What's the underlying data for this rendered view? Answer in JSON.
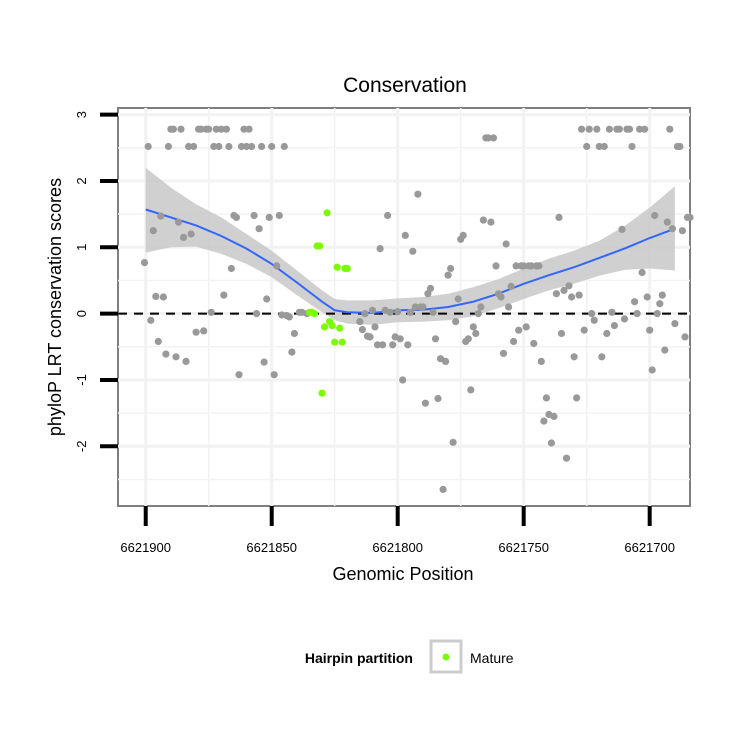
{
  "chart_data": {
    "type": "scatter",
    "title": "Conservation",
    "xlabel": "Genomic Position",
    "ylabel": "phyloP LRT conservation scores",
    "xlim": [
      6621911,
      6621684
    ],
    "x_reversed": true,
    "ylim": [
      -2.9,
      3.1
    ],
    "x_ticks": [
      6621900,
      6621850,
      6621800,
      6621750,
      6621700
    ],
    "y_ticks": [
      -2,
      -1,
      0,
      1,
      2,
      3
    ],
    "x_tick_labels": [
      "6621900",
      "6621850",
      "6621800",
      "6621750",
      "6621700"
    ],
    "y_tick_labels": [
      "-2",
      "-1",
      "0",
      "1",
      "2",
      "3"
    ],
    "grid": true,
    "reference_line": {
      "y": 0,
      "style": "dashed"
    },
    "legend": {
      "title": "Hairpin partition",
      "position": "bottom",
      "entries": [
        {
          "label": "Mature",
          "color": "#7cfc00"
        }
      ]
    },
    "colors": {
      "other": "#999999",
      "mature": "#7cfc00",
      "smooth": "#3366ff",
      "band": "#c8c8c8",
      "panel": "#ffffff",
      "grid": "#f2f2f2"
    },
    "series": [
      {
        "name": "",
        "color": "#999999",
        "points": [
          [
            6621900.5,
            0.77
          ],
          [
            6621899,
            2.52
          ],
          [
            6621898,
            -0.1
          ],
          [
            6621897,
            1.25
          ],
          [
            6621896,
            0.26
          ],
          [
            6621895,
            -0.42
          ],
          [
            6621894,
            1.47
          ],
          [
            6621893,
            0.25
          ],
          [
            6621892,
            -0.61
          ],
          [
            6621891,
            2.52
          ],
          [
            6621890,
            2.78
          ],
          [
            6621889,
            2.78
          ],
          [
            6621888,
            -0.65
          ],
          [
            6621887,
            1.38
          ],
          [
            6621886,
            2.78
          ],
          [
            6621885,
            1.15
          ],
          [
            6621884,
            -0.72
          ],
          [
            6621883,
            2.52
          ],
          [
            6621882,
            1.2
          ],
          [
            6621881,
            2.52
          ],
          [
            6621880,
            -0.28
          ],
          [
            6621879,
            2.78
          ],
          [
            6621878,
            2.78
          ],
          [
            6621877,
            -0.26
          ],
          [
            6621876,
            2.78
          ],
          [
            6621875,
            2.78
          ],
          [
            6621874,
            0.02
          ],
          [
            6621873,
            2.52
          ],
          [
            6621872,
            2.78
          ],
          [
            6621871,
            2.52
          ],
          [
            6621870,
            2.78
          ],
          [
            6621869,
            0.28
          ],
          [
            6621868,
            2.78
          ],
          [
            6621867,
            2.52
          ],
          [
            6621866,
            0.68
          ],
          [
            6621865,
            1.48
          ],
          [
            6621864,
            1.45
          ],
          [
            6621863,
            -0.92
          ],
          [
            6621862,
            2.52
          ],
          [
            6621861,
            2.78
          ],
          [
            6621860,
            2.52
          ],
          [
            6621859,
            2.78
          ],
          [
            6621858,
            2.52
          ],
          [
            6621857,
            1.48
          ],
          [
            6621856,
            0.0
          ],
          [
            6621855,
            1.28
          ],
          [
            6621854,
            2.52
          ],
          [
            6621853,
            -0.73
          ],
          [
            6621852,
            0.22
          ],
          [
            6621851,
            1.45
          ],
          [
            6621850,
            2.52
          ],
          [
            6621849,
            -0.92
          ],
          [
            6621848,
            0.72
          ],
          [
            6621847,
            1.48
          ],
          [
            6621846,
            -0.02
          ],
          [
            6621845,
            2.52
          ],
          [
            6621844,
            -0.03
          ],
          [
            6621843,
            -0.05
          ],
          [
            6621842,
            -0.58
          ],
          [
            6621841,
            -0.3
          ],
          [
            6621839,
            0.02
          ],
          [
            6621838,
            0.02
          ],
          [
            6621836,
            0.0
          ],
          [
            6621815,
            -0.12
          ],
          [
            6621814,
            -0.24
          ],
          [
            6621813,
            0.0
          ],
          [
            6621812,
            -0.34
          ],
          [
            6621811,
            -0.35
          ],
          [
            6621810,
            0.05
          ],
          [
            6621809,
            -0.2
          ],
          [
            6621808,
            -0.47
          ],
          [
            6621807,
            0.98
          ],
          [
            6621806,
            -0.47
          ],
          [
            6621805,
            0.05
          ],
          [
            6621804,
            1.48
          ],
          [
            6621803,
            0.02
          ],
          [
            6621802,
            -0.47
          ],
          [
            6621801,
            -0.35
          ],
          [
            6621800,
            0.03
          ],
          [
            6621799,
            -0.38
          ],
          [
            6621798,
            -1.0
          ],
          [
            6621797,
            1.18
          ],
          [
            6621796,
            -0.47
          ],
          [
            6621795,
            0.02
          ],
          [
            6621794,
            0.94
          ],
          [
            6621793,
            0.1
          ],
          [
            6621792,
            1.8
          ],
          [
            6621791,
            0.1
          ],
          [
            6621790,
            0.1
          ],
          [
            6621789,
            -1.35
          ],
          [
            6621788,
            0.3
          ],
          [
            6621787,
            0.38
          ],
          [
            6621786,
            0.02
          ],
          [
            6621785,
            -0.38
          ],
          [
            6621784,
            -1.28
          ],
          [
            6621783,
            -0.68
          ],
          [
            6621782,
            -2.65
          ],
          [
            6621781,
            -0.72
          ],
          [
            6621780,
            0.58
          ],
          [
            6621779,
            0.68
          ],
          [
            6621778,
            -1.94
          ],
          [
            6621777,
            -0.12
          ],
          [
            6621776,
            0.22
          ],
          [
            6621775,
            1.12
          ],
          [
            6621774,
            1.18
          ],
          [
            6621773,
            -0.42
          ],
          [
            6621772,
            -0.38
          ],
          [
            6621771,
            -1.15
          ],
          [
            6621770,
            -0.2
          ],
          [
            6621769,
            -0.3
          ],
          [
            6621768,
            0.0
          ],
          [
            6621767,
            0.1
          ],
          [
            6621766,
            1.41
          ],
          [
            6621765,
            2.65
          ],
          [
            6621764,
            2.65
          ],
          [
            6621763,
            1.38
          ],
          [
            6621762,
            2.65
          ],
          [
            6621761,
            0.72
          ],
          [
            6621760,
            0.3
          ],
          [
            6621759,
            0.25
          ],
          [
            6621758,
            -0.6
          ],
          [
            6621757,
            1.05
          ],
          [
            6621756,
            0.1
          ],
          [
            6621755,
            0.41
          ],
          [
            6621754,
            -0.42
          ],
          [
            6621753,
            0.72
          ],
          [
            6621752,
            -0.25
          ],
          [
            6621751,
            0.72
          ],
          [
            6621750,
            0.72
          ],
          [
            6621749,
            -0.2
          ],
          [
            6621748,
            0.72
          ],
          [
            6621747,
            0.72
          ],
          [
            6621746,
            -0.45
          ],
          [
            6621745,
            0.72
          ],
          [
            6621744,
            0.72
          ],
          [
            6621743,
            -0.72
          ],
          [
            6621742,
            -1.62
          ],
          [
            6621741,
            -1.27
          ],
          [
            6621740,
            -1.52
          ],
          [
            6621739,
            -1.95
          ],
          [
            6621738,
            -1.55
          ],
          [
            6621737,
            0.3
          ],
          [
            6621736,
            1.45
          ],
          [
            6621735,
            -0.3
          ],
          [
            6621734,
            0.35
          ],
          [
            6621733,
            -2.18
          ],
          [
            6621732,
            0.42
          ],
          [
            6621731,
            0.25
          ],
          [
            6621730,
            -0.65
          ],
          [
            6621729,
            -1.27
          ],
          [
            6621728,
            0.28
          ],
          [
            6621727,
            2.78
          ],
          [
            6621726,
            -0.25
          ],
          [
            6621725,
            2.52
          ],
          [
            6621724,
            2.78
          ],
          [
            6621723,
            0.0
          ],
          [
            6621722,
            -0.1
          ],
          [
            6621721,
            2.78
          ],
          [
            6621720,
            2.52
          ],
          [
            6621719,
            -0.65
          ],
          [
            6621718,
            2.52
          ],
          [
            6621717,
            -0.3
          ],
          [
            6621716,
            2.78
          ],
          [
            6621715,
            0.02
          ],
          [
            6621714,
            -0.18
          ],
          [
            6621713,
            2.78
          ],
          [
            6621712,
            2.78
          ],
          [
            6621711,
            1.27
          ],
          [
            6621710,
            -0.08
          ],
          [
            6621709,
            2.78
          ],
          [
            6621708,
            2.78
          ],
          [
            6621707,
            2.52
          ],
          [
            6621706,
            0.18
          ],
          [
            6621705,
            0.0
          ],
          [
            6621704,
            2.78
          ],
          [
            6621703,
            0.62
          ],
          [
            6621702,
            2.78
          ],
          [
            6621701,
            0.25
          ],
          [
            6621700,
            -0.25
          ],
          [
            6621699,
            -0.85
          ],
          [
            6621698,
            1.48
          ],
          [
            6621697,
            0.0
          ],
          [
            6621696,
            0.15
          ],
          [
            6621695,
            0.28
          ],
          [
            6621694,
            -0.55
          ],
          [
            6621693,
            1.38
          ],
          [
            6621692,
            2.78
          ],
          [
            6621691,
            1.28
          ],
          [
            6621690,
            -0.15
          ],
          [
            6621689,
            2.52
          ],
          [
            6621688,
            2.52
          ],
          [
            6621687,
            1.25
          ],
          [
            6621686,
            -0.35
          ],
          [
            6621685,
            1.45
          ],
          [
            6621684,
            1.45
          ]
        ]
      },
      {
        "name": "Mature",
        "color": "#7cfc00",
        "points": [
          [
            6621835,
            0.02
          ],
          [
            6621834,
            0.02
          ],
          [
            6621833,
            0.0
          ],
          [
            6621832,
            1.02
          ],
          [
            6621831,
            1.02
          ],
          [
            6621830,
            -1.2
          ],
          [
            6621829,
            -0.2
          ],
          [
            6621828,
            1.52
          ],
          [
            6621827,
            -0.12
          ],
          [
            6621826,
            -0.18
          ],
          [
            6621825,
            -0.43
          ],
          [
            6621824,
            0.7
          ],
          [
            6621823,
            -0.22
          ],
          [
            6621822,
            -0.43
          ],
          [
            6621821,
            0.68
          ],
          [
            6621820,
            0.68
          ]
        ]
      }
    ],
    "smooth": {
      "color": "#3366ff",
      "points": [
        [
          6621900,
          1.57
        ],
        [
          6621890,
          1.45
        ],
        [
          6621880,
          1.33
        ],
        [
          6621870,
          1.17
        ],
        [
          6621860,
          0.98
        ],
        [
          6621850,
          0.75
        ],
        [
          6621840,
          0.47
        ],
        [
          6621830,
          0.18
        ],
        [
          6621825,
          0.05
        ],
        [
          6621820,
          0.02
        ],
        [
          6621810,
          0.01
        ],
        [
          6621800,
          0.05
        ],
        [
          6621790,
          0.06
        ],
        [
          6621780,
          0.1
        ],
        [
          6621770,
          0.18
        ],
        [
          6621760,
          0.3
        ],
        [
          6621750,
          0.45
        ],
        [
          6621740,
          0.58
        ],
        [
          6621730,
          0.7
        ],
        [
          6621720,
          0.84
        ],
        [
          6621710,
          0.98
        ],
        [
          6621700,
          1.14
        ],
        [
          6621690,
          1.28
        ]
      ],
      "band_upper": [
        [
          6621900,
          2.2
        ],
        [
          6621890,
          1.9
        ],
        [
          6621880,
          1.65
        ],
        [
          6621870,
          1.45
        ],
        [
          6621860,
          1.2
        ],
        [
          6621850,
          0.95
        ],
        [
          6621840,
          0.65
        ],
        [
          6621830,
          0.35
        ],
        [
          6621825,
          0.22
        ],
        [
          6621820,
          0.2
        ],
        [
          6621810,
          0.2
        ],
        [
          6621800,
          0.23
        ],
        [
          6621790,
          0.25
        ],
        [
          6621780,
          0.3
        ],
        [
          6621770,
          0.4
        ],
        [
          6621760,
          0.52
        ],
        [
          6621750,
          0.68
        ],
        [
          6621740,
          0.83
        ],
        [
          6621730,
          0.95
        ],
        [
          6621720,
          1.1
        ],
        [
          6621710,
          1.32
        ],
        [
          6621700,
          1.6
        ],
        [
          6621690,
          1.92
        ]
      ],
      "band_lower": [
        [
          6621900,
          0.92
        ],
        [
          6621890,
          1.0
        ],
        [
          6621880,
          1.01
        ],
        [
          6621870,
          0.9
        ],
        [
          6621860,
          0.75
        ],
        [
          6621850,
          0.55
        ],
        [
          6621840,
          0.28
        ],
        [
          6621830,
          0.02
        ],
        [
          6621825,
          -0.1
        ],
        [
          6621820,
          -0.15
        ],
        [
          6621810,
          -0.17
        ],
        [
          6621800,
          -0.13
        ],
        [
          6621790,
          -0.12
        ],
        [
          6621780,
          -0.1
        ],
        [
          6621770,
          -0.04
        ],
        [
          6621760,
          0.08
        ],
        [
          6621750,
          0.22
        ],
        [
          6621740,
          0.35
        ],
        [
          6621730,
          0.45
        ],
        [
          6621720,
          0.57
        ],
        [
          6621710,
          0.66
        ],
        [
          6621700,
          0.68
        ],
        [
          6621690,
          0.65
        ]
      ]
    }
  }
}
